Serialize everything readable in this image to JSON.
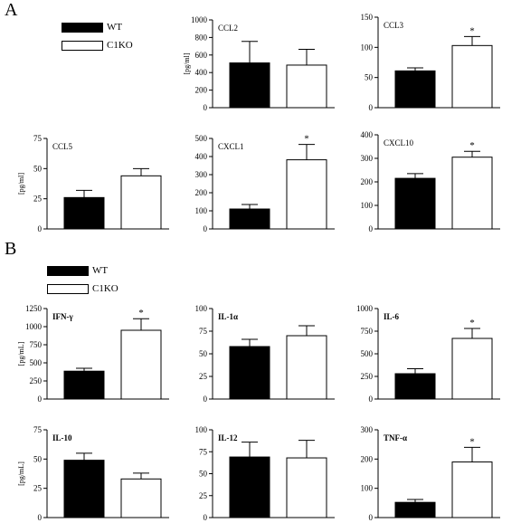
{
  "panels": {
    "a_letter": "A",
    "b_letter": "B"
  },
  "legend_a": {
    "wt": "WT",
    "ko": "C1KO"
  },
  "legend_b": {
    "wt": "WT",
    "ko": "C1KO"
  },
  "colors": {
    "wt": "#000000",
    "ko": "#ffffff",
    "axis": "#000000"
  },
  "chart_data": [
    {
      "type": "bar",
      "id": "ccl2",
      "title": "CCL2",
      "ylabel": "[pg/ml]",
      "ylim": [
        0,
        1000
      ],
      "yticks": [
        0,
        200,
        400,
        600,
        800,
        1000
      ],
      "categories": [
        "WT",
        "C1KO"
      ],
      "values": [
        510,
        485
      ],
      "errors": [
        245,
        180
      ],
      "significance": [
        "",
        ""
      ]
    },
    {
      "type": "bar",
      "id": "ccl3",
      "title": "CCL3",
      "ylabel": "",
      "ylim": [
        0,
        150
      ],
      "yticks": [
        0,
        50,
        100,
        150
      ],
      "categories": [
        "WT",
        "C1KO"
      ],
      "values": [
        61,
        103
      ],
      "errors": [
        5,
        15
      ],
      "significance": [
        "",
        "*"
      ]
    },
    {
      "type": "bar",
      "id": "ccl5",
      "title": "CCL5",
      "ylabel": "[pg/ml]",
      "ylim": [
        0,
        75
      ],
      "yticks": [
        0,
        25,
        50,
        75
      ],
      "categories": [
        "WT",
        "C1KO"
      ],
      "values": [
        26,
        44
      ],
      "errors": [
        6,
        6
      ],
      "significance": [
        "",
        ""
      ]
    },
    {
      "type": "bar",
      "id": "cxcl1",
      "title": "CXCL1",
      "ylabel": "",
      "ylim": [
        0,
        500
      ],
      "yticks": [
        0,
        100,
        200,
        300,
        400,
        500
      ],
      "categories": [
        "WT",
        "C1KO"
      ],
      "values": [
        110,
        382
      ],
      "errors": [
        25,
        85
      ],
      "significance": [
        "",
        "*"
      ]
    },
    {
      "type": "bar",
      "id": "cxcl10",
      "title": "CXCL10",
      "ylabel": "",
      "ylim": [
        0,
        400
      ],
      "yticks": [
        0,
        100,
        200,
        300,
        400
      ],
      "categories": [
        "WT",
        "C1KO"
      ],
      "values": [
        215,
        305
      ],
      "errors": [
        20,
        25
      ],
      "significance": [
        "",
        "*"
      ]
    },
    {
      "type": "bar",
      "id": "ifng",
      "title": "IFN-γ",
      "ylabel": "[pg/mL]",
      "ylim": [
        0,
        1250
      ],
      "yticks": [
        0,
        250,
        500,
        750,
        1000,
        1250
      ],
      "categories": [
        "WT",
        "C1KO"
      ],
      "values": [
        385,
        950
      ],
      "errors": [
        40,
        160
      ],
      "significance": [
        "",
        "*"
      ]
    },
    {
      "type": "bar",
      "id": "il1a",
      "title": "IL-1α",
      "ylabel": "",
      "ylim": [
        0,
        100
      ],
      "yticks": [
        0,
        25,
        50,
        75,
        100
      ],
      "categories": [
        "WT",
        "C1KO"
      ],
      "values": [
        58,
        70
      ],
      "errors": [
        8,
        11
      ],
      "significance": [
        "",
        ""
      ]
    },
    {
      "type": "bar",
      "id": "il6",
      "title": "IL-6",
      "ylabel": "",
      "ylim": [
        0,
        1000
      ],
      "yticks": [
        0,
        250,
        500,
        750,
        1000
      ],
      "categories": [
        "WT",
        "C1KO"
      ],
      "values": [
        280,
        670
      ],
      "errors": [
        55,
        110
      ],
      "significance": [
        "",
        "*"
      ]
    },
    {
      "type": "bar",
      "id": "il10",
      "title": "IL-10",
      "ylabel": "[pg/mL]",
      "ylim": [
        0,
        75
      ],
      "yticks": [
        0,
        25,
        50,
        75
      ],
      "categories": [
        "WT",
        "C1KO"
      ],
      "values": [
        49,
        33
      ],
      "errors": [
        6,
        5
      ],
      "significance": [
        "",
        ""
      ]
    },
    {
      "type": "bar",
      "id": "il12",
      "title": "IL-12",
      "ylabel": "",
      "ylim": [
        0,
        100
      ],
      "yticks": [
        0,
        25,
        50,
        75,
        100
      ],
      "categories": [
        "WT",
        "C1KO"
      ],
      "values": [
        69,
        68
      ],
      "errors": [
        17,
        20
      ],
      "significance": [
        "",
        ""
      ]
    },
    {
      "type": "bar",
      "id": "tnfa",
      "title": "TNF-α",
      "ylabel": "",
      "ylim": [
        0,
        300
      ],
      "yticks": [
        0,
        100,
        200,
        300
      ],
      "categories": [
        "WT",
        "C1KO"
      ],
      "values": [
        52,
        190
      ],
      "errors": [
        10,
        50
      ],
      "significance": [
        "",
        "*"
      ]
    }
  ]
}
